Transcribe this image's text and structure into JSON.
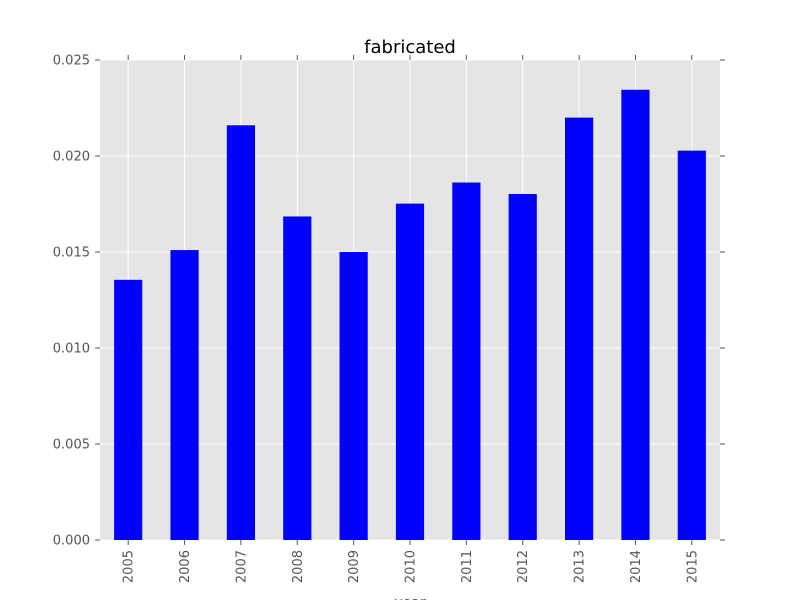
{
  "chart_data": {
    "type": "bar",
    "title": "fabricated",
    "xlabel": "year",
    "ylabel": "",
    "categories": [
      "2005",
      "2006",
      "2007",
      "2008",
      "2009",
      "2010",
      "2011",
      "2012",
      "2013",
      "2014",
      "2015"
    ],
    "values": [
      0.01355,
      0.0151,
      0.0216,
      0.01685,
      0.015,
      0.01752,
      0.01862,
      0.01802,
      0.022,
      0.02345,
      0.02028
    ],
    "ylim": [
      0,
      0.025
    ],
    "yticks": [
      "0.000",
      "0.005",
      "0.010",
      "0.015",
      "0.020",
      "0.025"
    ],
    "grid": true,
    "bar_color": "#0000ff",
    "plot_background": "#e5e5e5",
    "grid_color": "#ffffff",
    "legend": "none"
  }
}
